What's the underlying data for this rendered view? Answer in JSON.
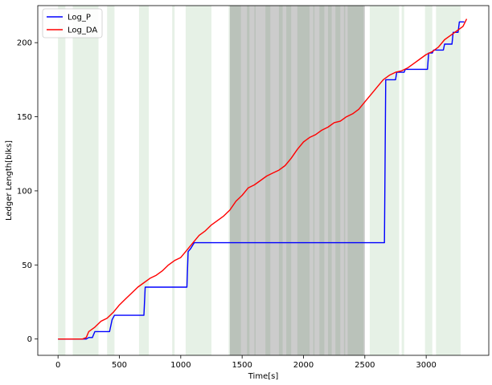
{
  "chart_data": {
    "type": "line",
    "xlabel": "Time[s]",
    "ylabel": "Ledger Length[blks]",
    "xlim": [
      -165,
      3510
    ],
    "ylim": [
      -11,
      225
    ],
    "xticks": [
      0,
      500,
      1000,
      1500,
      2000,
      2500,
      3000
    ],
    "yticks": [
      0,
      50,
      100,
      150,
      200
    ],
    "grid": false,
    "legend": "top-left",
    "green_bands": [
      [
        0,
        60
      ],
      [
        120,
        330
      ],
      [
        400,
        460
      ],
      [
        660,
        740
      ],
      [
        930,
        950
      ],
      [
        1040,
        1250
      ],
      [
        1390,
        1490
      ],
      [
        1540,
        1560
      ],
      [
        1600,
        1610
      ],
      [
        1690,
        1730
      ],
      [
        1800,
        1830
      ],
      [
        1860,
        1900
      ],
      [
        1950,
        2050
      ],
      [
        2080,
        2090
      ],
      [
        2130,
        2170
      ],
      [
        2200,
        2230
      ],
      [
        2260,
        2300
      ],
      [
        2330,
        2340
      ],
      [
        2360,
        2490
      ],
      [
        2540,
        2780
      ],
      [
        2800,
        2820
      ],
      [
        2990,
        3050
      ],
      [
        3080,
        3280
      ]
    ],
    "gray_bands": [
      [
        1400,
        2500
      ]
    ],
    "series": [
      {
        "name": "Log_P",
        "color": "#0000ff",
        "x": [
          0,
          230,
          250,
          280,
          300,
          420,
          440,
          460,
          700,
          710,
          1050,
          1060,
          1080,
          1110,
          2660,
          2670,
          2750,
          2760,
          2820,
          2830,
          3010,
          3020,
          3050,
          3060,
          3140,
          3150,
          3210,
          3220,
          3260,
          3270,
          3310
        ],
        "y": [
          0,
          0,
          1,
          1,
          5,
          5,
          13,
          16,
          16,
          35,
          35,
          59,
          61,
          65,
          65,
          175,
          175,
          180,
          180,
          182,
          182,
          193,
          193,
          195,
          195,
          199,
          199,
          207,
          207,
          214,
          214
        ]
      },
      {
        "name": "Log_DA",
        "color": "#ff0000",
        "x": [
          0,
          200,
          230,
          250,
          300,
          350,
          400,
          450,
          500,
          550,
          600,
          650,
          700,
          750,
          800,
          850,
          900,
          950,
          1000,
          1050,
          1100,
          1150,
          1200,
          1250,
          1300,
          1350,
          1400,
          1450,
          1500,
          1550,
          1600,
          1650,
          1700,
          1750,
          1800,
          1850,
          1900,
          1950,
          2000,
          2050,
          2100,
          2150,
          2200,
          2250,
          2300,
          2350,
          2400,
          2450,
          2500,
          2550,
          2600,
          2650,
          2700,
          2750,
          2800,
          2850,
          2900,
          2950,
          3000,
          3050,
          3100,
          3150,
          3200,
          3250,
          3300,
          3330
        ],
        "y": [
          0,
          0,
          1,
          5,
          8,
          12,
          14,
          18,
          23,
          27,
          31,
          35,
          38,
          41,
          43,
          46,
          50,
          53,
          55,
          60,
          65,
          70,
          73,
          77,
          80,
          83,
          87,
          93,
          97,
          102,
          104,
          107,
          110,
          112,
          114,
          117,
          122,
          128,
          133,
          136,
          138,
          141,
          143,
          146,
          147,
          150,
          152,
          155,
          160,
          165,
          170,
          175,
          178,
          180,
          181,
          183,
          186,
          189,
          192,
          194,
          197,
          202,
          205,
          208,
          211,
          216
        ]
      }
    ]
  }
}
